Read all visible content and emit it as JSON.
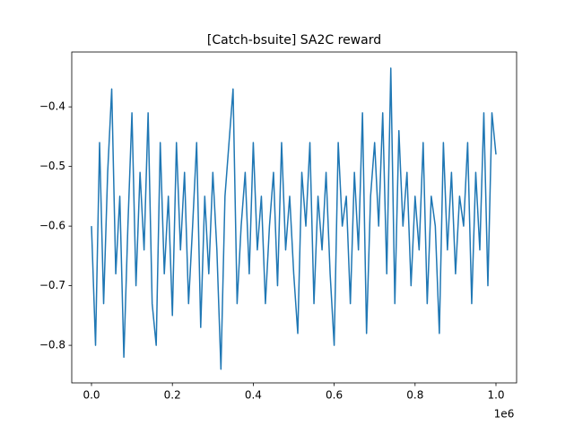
{
  "chart_data": {
    "type": "line",
    "title": "[Catch-bsuite] SA2C reward",
    "x_offset_label": "1e6",
    "x": [
      0,
      10000,
      20000,
      30000,
      40000,
      50000,
      60000,
      70000,
      80000,
      90000,
      100000,
      110000,
      120000,
      130000,
      140000,
      150000,
      160000,
      170000,
      180000,
      190000,
      200000,
      210000,
      220000,
      230000,
      240000,
      250000,
      260000,
      270000,
      280000,
      290000,
      300000,
      310000,
      320000,
      330000,
      340000,
      350000,
      360000,
      370000,
      380000,
      390000,
      400000,
      410000,
      420000,
      430000,
      440000,
      450000,
      460000,
      470000,
      480000,
      490000,
      500000,
      510000,
      520000,
      530000,
      540000,
      550000,
      560000,
      570000,
      580000,
      590000,
      600000,
      610000,
      620000,
      630000,
      640000,
      650000,
      660000,
      670000,
      680000,
      690000,
      700000,
      710000,
      720000,
      730000,
      740000,
      750000,
      760000,
      770000,
      780000,
      790000,
      800000,
      810000,
      820000,
      830000,
      840000,
      850000,
      860000,
      870000,
      880000,
      890000,
      900000,
      910000,
      920000,
      930000,
      940000,
      950000,
      960000,
      970000,
      980000,
      990000,
      1000000
    ],
    "series": [
      {
        "color": "#1f77b4",
        "values": [
          -0.6,
          -0.8,
          -0.46,
          -0.73,
          -0.51,
          -0.37,
          -0.68,
          -0.55,
          -0.82,
          -0.6,
          -0.41,
          -0.7,
          -0.51,
          -0.64,
          -0.41,
          -0.73,
          -0.8,
          -0.46,
          -0.68,
          -0.55,
          -0.75,
          -0.46,
          -0.64,
          -0.51,
          -0.73,
          -0.6,
          -0.46,
          -0.77,
          -0.55,
          -0.68,
          -0.51,
          -0.64,
          -0.84,
          -0.55,
          -0.46,
          -0.37,
          -0.73,
          -0.6,
          -0.51,
          -0.68,
          -0.46,
          -0.64,
          -0.55,
          -0.73,
          -0.6,
          -0.51,
          -0.7,
          -0.46,
          -0.64,
          -0.55,
          -0.68,
          -0.78,
          -0.51,
          -0.6,
          -0.46,
          -0.73,
          -0.55,
          -0.64,
          -0.51,
          -0.68,
          -0.8,
          -0.46,
          -0.6,
          -0.55,
          -0.73,
          -0.51,
          -0.64,
          -0.41,
          -0.78,
          -0.55,
          -0.46,
          -0.6,
          -0.41,
          -0.68,
          -0.335,
          -0.73,
          -0.44,
          -0.6,
          -0.51,
          -0.7,
          -0.55,
          -0.64,
          -0.46,
          -0.73,
          -0.55,
          -0.6,
          -0.78,
          -0.46,
          -0.64,
          -0.51,
          -0.68,
          -0.55,
          -0.6,
          -0.46,
          -0.73,
          -0.51,
          -0.64,
          -0.41,
          -0.7,
          -0.41,
          -0.48
        ]
      }
    ],
    "xlim": [
      -48800,
      1051000
    ],
    "ylim": [
      -0.863,
      -0.308
    ],
    "xticks": [
      {
        "value": 0,
        "label": "0.0"
      },
      {
        "value": 200000,
        "label": "0.2"
      },
      {
        "value": 400000,
        "label": "0.4"
      },
      {
        "value": 600000,
        "label": "0.6"
      },
      {
        "value": 800000,
        "label": "0.8"
      },
      {
        "value": 1000000,
        "label": "1.0"
      }
    ],
    "yticks": [
      {
        "value": -0.8,
        "label": "−0.8"
      },
      {
        "value": -0.7,
        "label": "−0.7"
      },
      {
        "value": -0.6,
        "label": "−0.6"
      },
      {
        "value": -0.5,
        "label": "−0.5"
      },
      {
        "value": -0.4,
        "label": "−0.4"
      }
    ]
  }
}
